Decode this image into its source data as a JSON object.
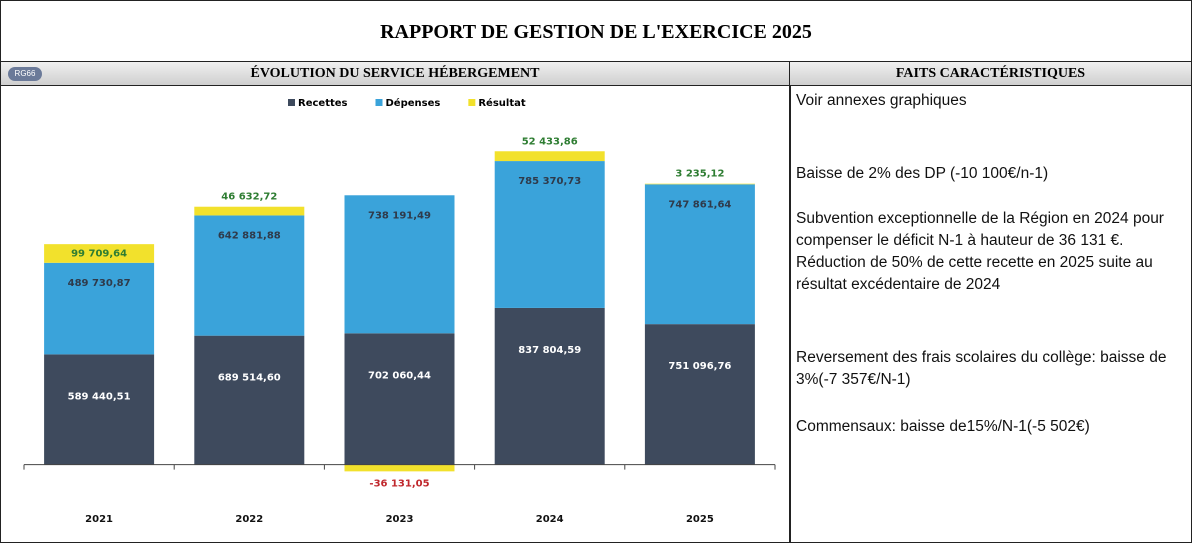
{
  "header": {
    "title": "RAPPORT DE GESTION DE L'EXERCICE 2025"
  },
  "panel": {
    "badge": "RG66",
    "title": "ÉVOLUTION DU SERVICE HÉBERGEMENT"
  },
  "facts": {
    "title": "FAITS CARACTÉRISTIQUES",
    "items": [
      "Voir annexes graphiques",
      "Baisse de 2% des DP (-10 100€/n-1)",
      "Subvention exceptionnelle de la Région en 2024 pour compenser le déficit N-1 à hauteur de 36 131 €. Réduction de 50% de cette recette en 2025 suite au résultat excédentaire de 2024",
      "Reversement des frais scolaires du collège: baisse de 3%(-7 357€/N-1)",
      "Commensaux: baisse de15%/N-1(-5 502€)"
    ]
  },
  "chart_data": {
    "type": "bar",
    "stacked": true,
    "categories": [
      "2021",
      "2022",
      "2023",
      "2024",
      "2025"
    ],
    "series": [
      {
        "name": "Recettes",
        "color": "#3e4a5d",
        "values": [
          589440.51,
          689514.6,
          702060.44,
          837804.59,
          751096.76
        ],
        "value_labels": [
          "589 440,51",
          "689 514,60",
          "702 060,44",
          "837 804,59",
          "751 096,76"
        ]
      },
      {
        "name": "Dépenses",
        "color": "#3aa3da",
        "values": [
          489730.87,
          642881.88,
          738191.49,
          785370.73,
          747861.64
        ],
        "value_labels": [
          "489 730,87",
          "642 881,88",
          "738 191,49",
          "785 370,73",
          "747 861,64"
        ]
      },
      {
        "name": "Résultat",
        "color": "#f2e12c",
        "values": [
          99709.64,
          46632.72,
          -36131.05,
          52433.86,
          3235.12
        ],
        "value_labels": [
          "99 709,64",
          "46 632,72",
          "-36 131,05",
          "52 433,86",
          "3 235,12"
        ]
      }
    ],
    "ylim": [
      -200000,
      1800000
    ],
    "legend": "top"
  }
}
